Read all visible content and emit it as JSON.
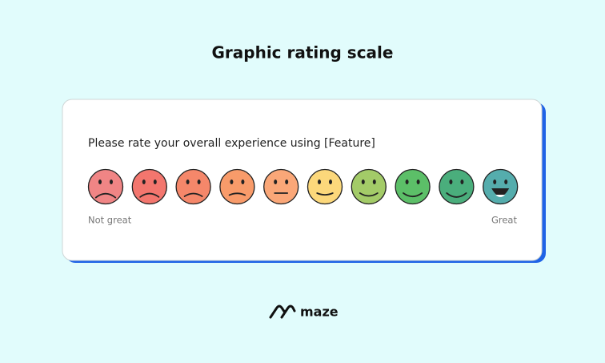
{
  "header": {
    "title": "Graphic rating scale"
  },
  "card": {
    "question": "Please rate your overall experience using [Feature]",
    "low_label": "Not great",
    "high_label": "Great"
  },
  "footer": {
    "brand": "maze"
  }
}
